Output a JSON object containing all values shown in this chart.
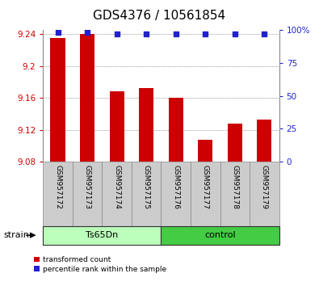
{
  "title": "GDS4376 / 10561854",
  "samples": [
    "GSM957172",
    "GSM957173",
    "GSM957174",
    "GSM957175",
    "GSM957176",
    "GSM957177",
    "GSM957178",
    "GSM957179"
  ],
  "bar_values": [
    9.235,
    9.24,
    9.168,
    9.172,
    9.16,
    9.107,
    9.128,
    9.133
  ],
  "bar_base": 9.08,
  "percentile_values": [
    98,
    98,
    97,
    97,
    97,
    97,
    97,
    97
  ],
  "groups": [
    {
      "label": "Ts65Dn",
      "start": 0,
      "end": 4
    },
    {
      "label": "control",
      "start": 4,
      "end": 8
    }
  ],
  "group_label": "strain",
  "ylim": [
    9.08,
    9.245
  ],
  "yticks": [
    9.08,
    9.12,
    9.16,
    9.2,
    9.24
  ],
  "ytick_labels": [
    "9.08",
    "9.12",
    "9.16",
    "9.2",
    "9.24"
  ],
  "right_yticks": [
    0,
    25,
    50,
    75,
    100
  ],
  "right_ytick_labels": [
    "0",
    "25",
    "50",
    "75",
    "100%"
  ],
  "right_ylim": [
    0,
    100
  ],
  "bar_color": "#cc0000",
  "blue_color": "#2222cc",
  "left_tick_color": "#cc0000",
  "right_tick_color": "#2222cc",
  "title_fontsize": 11,
  "tick_fontsize": 7.5,
  "sample_fontsize": 6.5,
  "group_fontsize": 8,
  "legend_fontsize": 6.5,
  "bar_width": 0.5,
  "background_color": "#ffffff",
  "sample_bg_color": "#cccccc",
  "group1_color": "#bbffbb",
  "group2_color": "#44cc44",
  "n_samples": 8
}
